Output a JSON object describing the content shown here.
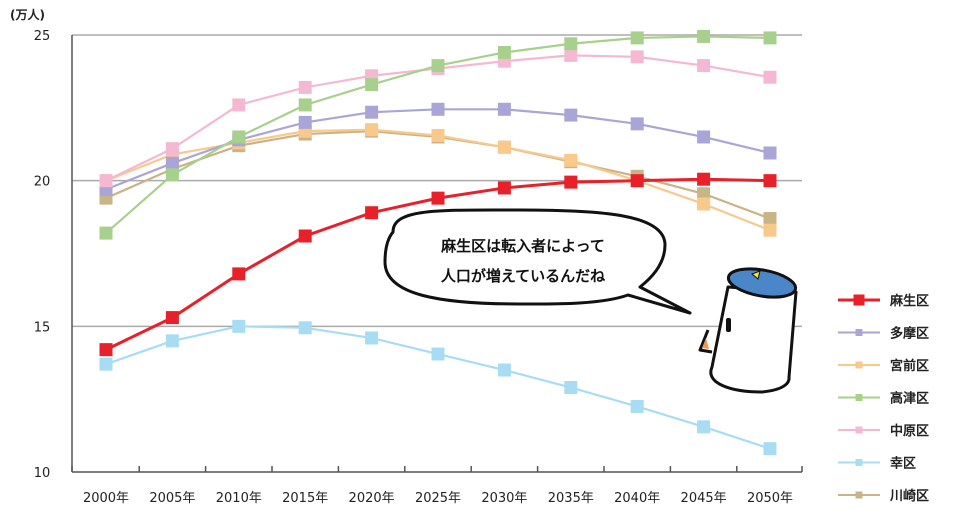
{
  "chart_data": {
    "type": "line",
    "unit_label": "(万人)",
    "x": [
      "2000年",
      "2005年",
      "2010年",
      "2015年",
      "2020年",
      "2025年",
      "2030年",
      "2035年",
      "2040年",
      "2045年",
      "2050年"
    ],
    "yticks": [
      10,
      15,
      20,
      25
    ],
    "ylim": [
      10,
      25
    ],
    "grid": true,
    "legend_position": "right",
    "series": [
      {
        "name": "麻生区",
        "color": "#e8202a",
        "values": [
          14.2,
          15.3,
          16.8,
          18.1,
          18.9,
          19.4,
          19.75,
          19.95,
          20.0,
          20.05,
          20.0
        ]
      },
      {
        "name": "多摩区",
        "color": "#a9a5d6",
        "values": [
          19.7,
          20.6,
          21.4,
          22.0,
          22.35,
          22.45,
          22.45,
          22.25,
          21.95,
          21.5,
          20.95
        ]
      },
      {
        "name": "宮前区",
        "color": "#f8c98a",
        "values": [
          20.0,
          20.9,
          21.3,
          21.7,
          21.75,
          21.55,
          21.15,
          20.7,
          20.0,
          19.2,
          18.3
        ]
      },
      {
        "name": "高津区",
        "color": "#a8d08d",
        "values": [
          18.2,
          20.2,
          21.5,
          22.6,
          23.3,
          23.95,
          24.4,
          24.7,
          24.9,
          24.95,
          24.9
        ]
      },
      {
        "name": "中原区",
        "color": "#f5b8d2",
        "values": [
          20.0,
          21.1,
          22.6,
          23.2,
          23.6,
          23.85,
          24.1,
          24.3,
          24.25,
          23.95,
          23.55
        ]
      },
      {
        "name": "幸区",
        "color": "#a8dcf2",
        "values": [
          13.7,
          14.5,
          15.0,
          14.95,
          14.6,
          14.05,
          13.5,
          12.9,
          12.25,
          11.55,
          10.8
        ]
      },
      {
        "name": "川崎区",
        "color": "#c9b487",
        "values": [
          19.4,
          20.4,
          21.2,
          21.6,
          21.7,
          21.5,
          21.15,
          20.65,
          20.15,
          19.55,
          18.7
        ]
      }
    ]
  },
  "annotation": {
    "bubble_line1": "麻生区は転入者によって",
    "bubble_line2": "人口が増えているんだね"
  }
}
